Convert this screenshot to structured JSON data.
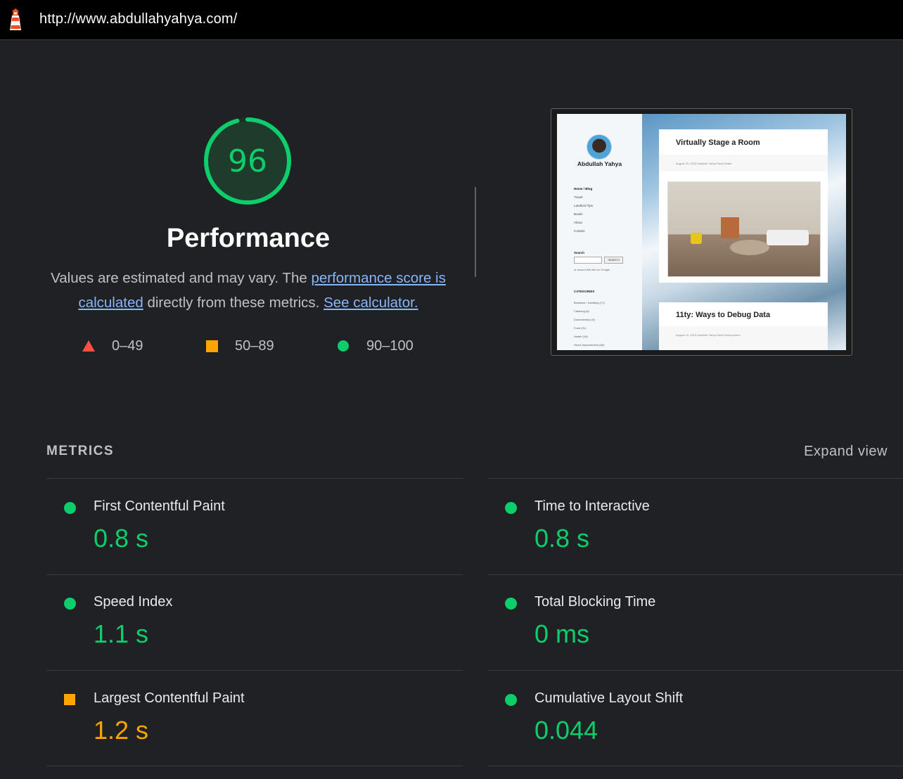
{
  "topbar": {
    "url": "http://www.abdullahyahya.com/"
  },
  "summary": {
    "score": "96",
    "title": "Performance",
    "desc_text_1": "Values are estimated and may vary. The ",
    "desc_link_1": "performance score is calculated",
    "desc_text_2": " directly from these metrics. ",
    "desc_link_2": "See calculator.",
    "score_fraction": 0.96
  },
  "legend": [
    {
      "label": "0–49",
      "shape": "triangle",
      "color": "#ff4e42"
    },
    {
      "label": "50–89",
      "shape": "square",
      "color": "#ffa400"
    },
    {
      "label": "90–100",
      "shape": "circle",
      "color": "#0cce6b"
    }
  ],
  "screenshot": {
    "author": "Abdullah Yahya",
    "nav": [
      "Home / Blog",
      "Travel",
      "Landlord Tips",
      "Books",
      "About",
      "Contact"
    ],
    "search_label": "Search",
    "search_button": "SEARCH",
    "search_note": "or search this site for Google",
    "categories_label": "CATEGORIES",
    "categories": [
      "Business / Investing (71)",
      "Cleaning (6)",
      "Documentary (9)",
      "Food (31)",
      "Health (16)",
      "Home Improvement (84)"
    ],
    "post1_title": "Virtually Stage a Room",
    "post1_meta": "August 23, 2022   Abdullah Yahya   Real Estate",
    "post2_title": "11ty: Ways to Debug Data",
    "post2_meta": "August 19, 2022   Abdullah Yahya   Web Development"
  },
  "metrics": {
    "header": "METRICS",
    "expand": "Expand view",
    "items": [
      {
        "name": "First Contentful Paint",
        "value": "0.8 s",
        "rating": "pass"
      },
      {
        "name": "Time to Interactive",
        "value": "0.8 s",
        "rating": "pass"
      },
      {
        "name": "Speed Index",
        "value": "1.1 s",
        "rating": "pass"
      },
      {
        "name": "Total Blocking Time",
        "value": "0 ms",
        "rating": "pass"
      },
      {
        "name": "Largest Contentful Paint",
        "value": "1.2 s",
        "rating": "average"
      },
      {
        "name": "Cumulative Layout Shift",
        "value": "0.044",
        "rating": "pass"
      }
    ]
  },
  "colors": {
    "pass": "#0cce6b",
    "average": "#ffa400",
    "fail": "#ff4e42",
    "link": "#8ab4f8"
  }
}
